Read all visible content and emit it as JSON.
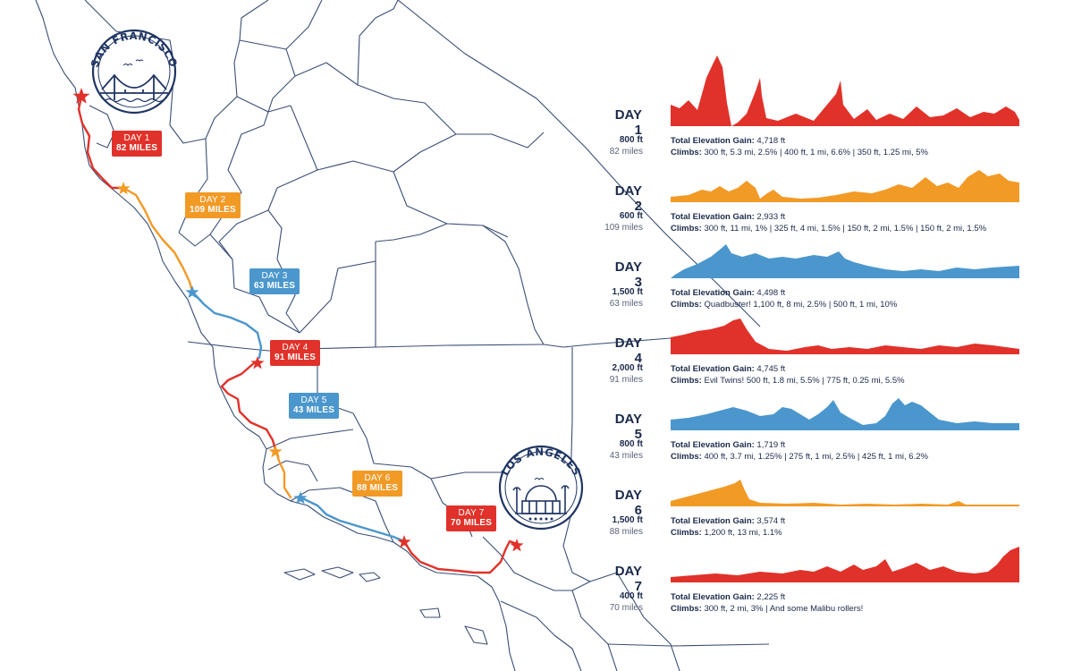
{
  "colors": {
    "red": "#e0322a",
    "orange": "#f29a26",
    "blue": "#4b97cd",
    "navy": "#1f3563",
    "map_line": "#3a4e74"
  },
  "cities": {
    "sf": {
      "name": "SAN FRANCISCO",
      "icon": "golden-gate-bridge-icon"
    },
    "la": {
      "name": "LOS ANGELES",
      "icon": "griffith-observatory-icon"
    }
  },
  "route_labels": [
    {
      "day": "DAY 1",
      "miles": "82 MILES",
      "color": "red"
    },
    {
      "day": "DAY 2",
      "miles": "109 MILES",
      "color": "orange"
    },
    {
      "day": "DAY 3",
      "miles": "63 MILES",
      "color": "blue"
    },
    {
      "day": "DAY 4",
      "miles": "91 MILES",
      "color": "red"
    },
    {
      "day": "DAY 5",
      "miles": "43 MILES",
      "color": "blue"
    },
    {
      "day": "DAY 6",
      "miles": "88 MILES",
      "color": "orange"
    },
    {
      "day": "DAY 7",
      "miles": "70 MILES",
      "color": "red"
    }
  ],
  "stages": [
    {
      "day": "DAY 1",
      "elev": "800 ft",
      "miles": "82 miles",
      "gain_label": "Total Elevation Gain:",
      "gain": "4,718 ft",
      "climbs_label": "Climbs:",
      "climbs": "300 ft, 5.3 mi, 2.5%   |   400 ft, 1 mi, 6.6%   |   350 ft, 1.25 mi, 5%",
      "color": "red"
    },
    {
      "day": "DAY 2",
      "elev": "600 ft",
      "miles": "109 miles",
      "gain_label": "Total Elevation Gain:",
      "gain": "2,933 ft",
      "climbs_label": "Climbs:",
      "climbs": "300 ft, 11 mi, 1%   |   325 ft, 4 mi, 1.5%   |   150 ft, 2 mi, 1.5%   |   150 ft, 2 mi, 1.5%",
      "color": "orange"
    },
    {
      "day": "DAY 3",
      "elev": "1,500 ft",
      "miles": "63 miles",
      "gain_label": "Total Elevation Gain:",
      "gain": "4,498 ft",
      "climbs_label": "Climbs:",
      "climbs": "Quadbuster!  1,100 ft, 8 mi, 2.5%   |   500 ft, 1 mi, 10%",
      "color": "blue"
    },
    {
      "day": "DAY 4",
      "elev": "2,000 ft",
      "miles": "91 miles",
      "gain_label": "Total Elevation Gain:",
      "gain": "4,745 ft",
      "climbs_label": "Climbs:",
      "climbs": "Evil Twins!   500 ft, 1.8 mi, 5.5%   |   775 ft, 0.25 mi, 5.5%",
      "color": "red"
    },
    {
      "day": "DAY 5",
      "elev": "800 ft",
      "miles": "43 miles",
      "gain_label": "Total Elevation Gain:",
      "gain": "1,719 ft",
      "climbs_label": "Climbs:",
      "climbs": "400 ft, 3.7 mi, 1.25%   |   275 ft, 1 mi, 2.5%   |   425 ft, 1 mi, 6.2%",
      "color": "blue"
    },
    {
      "day": "DAY 6",
      "elev": "1,500 ft",
      "miles": "88 miles",
      "gain_label": "Total Elevation Gain:",
      "gain": "3,574 ft",
      "climbs_label": "Climbs:",
      "climbs": "1,200 ft, 13 mi, 1.1%",
      "color": "orange"
    },
    {
      "day": "DAY 7",
      "elev": "400 ft",
      "miles": "70 miles",
      "gain_label": "Total Elevation Gain:",
      "gain": "2,225 ft",
      "climbs_label": "Climbs:",
      "climbs": "300 ft, 2 mi, 3%   |   And some Malibu rollers!",
      "color": "red"
    }
  ]
}
